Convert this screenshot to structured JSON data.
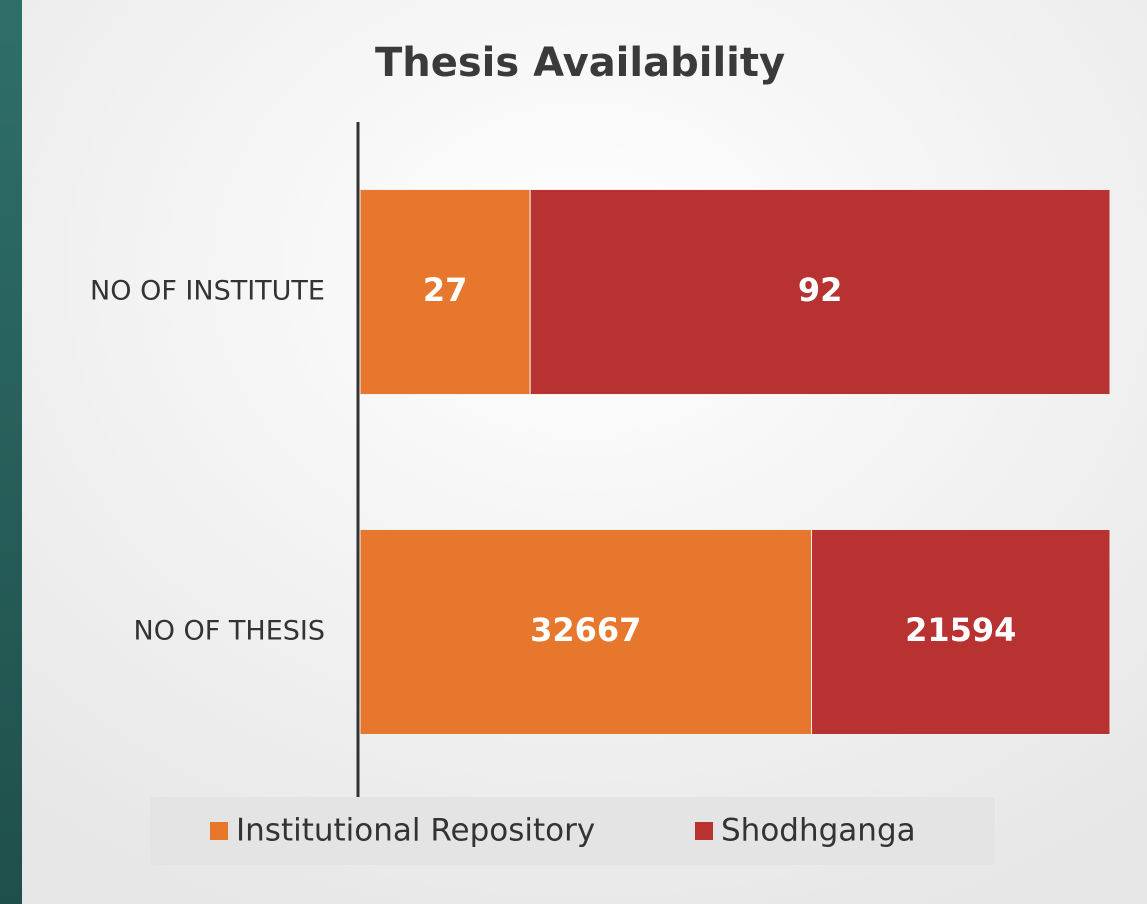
{
  "chart_data": {
    "type": "bar",
    "orientation": "horizontal",
    "stacking": "percent",
    "title": "Thesis Availability",
    "categories": [
      "NO OF INSTITUTE",
      "NO OF THESIS"
    ],
    "series": [
      {
        "name": "Institutional Repository",
        "color": "#e8772e",
        "values": [
          27,
          32667
        ]
      },
      {
        "name": "Shodhganga",
        "color": "#b83232",
        "values": [
          92,
          21594
        ]
      }
    ],
    "legend": "bottom"
  }
}
